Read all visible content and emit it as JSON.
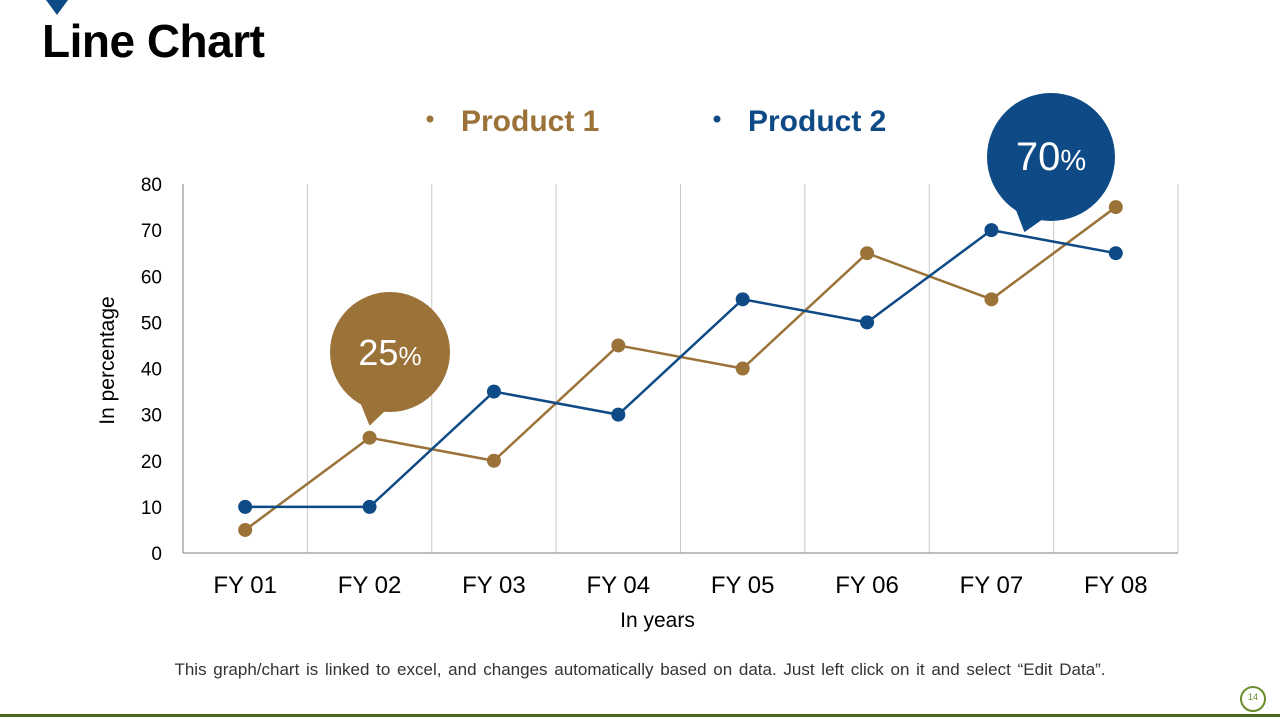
{
  "slide": {
    "title": "Line Chart",
    "footnote": "This graph/chart is linked to excel, and changes automatically based on data. Just left click on it and select “Edit Data”.",
    "page_number": "14"
  },
  "colors": {
    "product1": "#9b7339",
    "product2": "#0e4a85",
    "grid": "#c8c8c8",
    "axis": "#7f7f7f",
    "text": "#000000"
  },
  "chart_data": {
    "type": "line",
    "title": "",
    "categories": [
      "FY 01",
      "FY 02",
      "FY 03",
      "FY 04",
      "FY 05",
      "FY 06",
      "FY 07",
      "FY 08"
    ],
    "series": [
      {
        "name": "Product 1",
        "values": [
          5,
          25,
          20,
          45,
          40,
          65,
          55,
          75
        ]
      },
      {
        "name": "Product 2",
        "values": [
          10,
          10,
          35,
          30,
          55,
          50,
          70,
          65
        ]
      }
    ],
    "xlabel": "In years",
    "ylabel": "In percentage",
    "ylim": [
      0,
      80
    ],
    "yticks": [
      0,
      10,
      20,
      30,
      40,
      50,
      60,
      70,
      80
    ],
    "grid": "vertical",
    "legend": "top",
    "callouts": [
      {
        "number": "25",
        "unit": "%",
        "series": 0,
        "index": 1
      },
      {
        "number": "70",
        "unit": "%",
        "series": 1,
        "index": 6
      }
    ]
  }
}
